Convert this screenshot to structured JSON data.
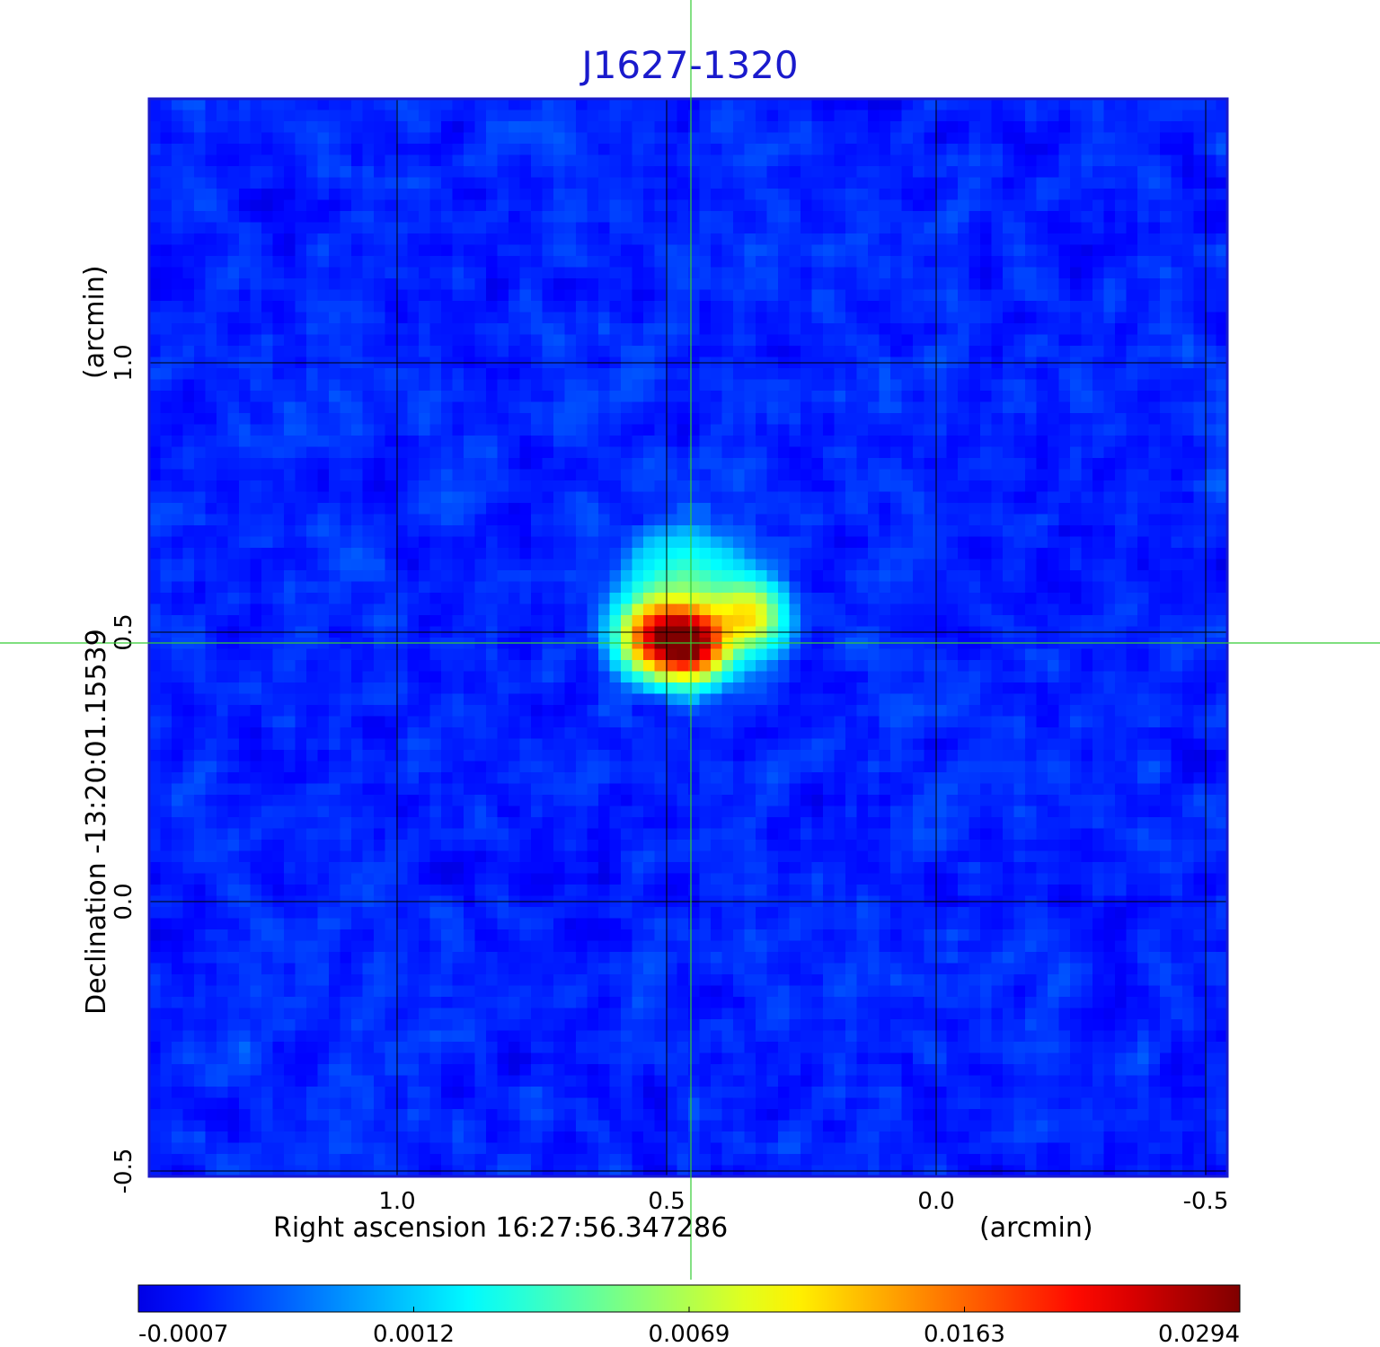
{
  "chart_data": {
    "type": "heatmap",
    "title": "J1627-1320",
    "xlabel": "Right ascension  16:27:56.347286",
    "xunit": "(arcmin)",
    "ylabel": "Declination  -13:20:01.15539",
    "yunit": "(arcmin)",
    "x_ticks": [
      "1.0",
      "0.5",
      "0.0",
      "-0.5"
    ],
    "y_ticks": [
      "1.0",
      "0.5",
      "0.0",
      "-0.5"
    ],
    "x_tick_values": [
      1.0,
      0.5,
      0.0,
      -0.5
    ],
    "y_tick_values": [
      1.0,
      0.5,
      0.0,
      -0.5
    ],
    "xlim": [
      1.46,
      -0.54
    ],
    "ylim": [
      -0.51,
      1.49
    ],
    "grid": true,
    "colormap": "jet",
    "colorbar_ticks": [
      "-0.0007",
      "0.0012",
      "0.0069",
      "0.0163",
      "0.0294"
    ],
    "crosshair": {
      "x": 0.455,
      "y": 0.48
    },
    "sources": [
      {
        "x": 0.52,
        "y": 0.49,
        "peak": 0.02
      },
      {
        "x": 0.455,
        "y": 0.48,
        "peak": 0.0294
      },
      {
        "x": 0.35,
        "y": 0.53,
        "peak": 0.011
      },
      {
        "x": 0.47,
        "y": 0.58,
        "peak": 0.0045
      }
    ],
    "background_level": -0.0002
  },
  "colors": {
    "title": "#1a1acc",
    "crosshair": "#33cc33",
    "grid": "#000000",
    "frame": "#1a1acc"
  }
}
